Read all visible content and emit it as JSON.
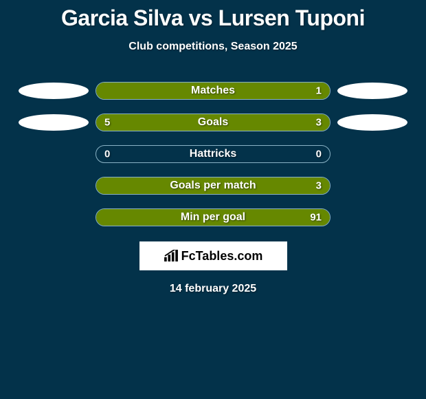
{
  "title": "Garcia Silva vs Lursen Tuponi",
  "subtitle": "Club competitions, Season 2025",
  "date": "14 february 2025",
  "logo_text": "FcTables.com",
  "colors": {
    "background": "#03324a",
    "bar_fill": "#668800",
    "bar_border": "#8ab3c6",
    "ellipse": "#ffffff",
    "logo_box": "#ffffff",
    "text": "#ffffff"
  },
  "stats": [
    {
      "label": "Matches",
      "left_value": "",
      "right_value": "1",
      "left_fill_pct": 0,
      "right_fill_pct": 100,
      "show_ellipses": true
    },
    {
      "label": "Goals",
      "left_value": "5",
      "right_value": "3",
      "left_fill_pct": 62,
      "right_fill_pct": 38,
      "show_ellipses": true
    },
    {
      "label": "Hattricks",
      "left_value": "0",
      "right_value": "0",
      "left_fill_pct": 0,
      "right_fill_pct": 0,
      "show_ellipses": false
    },
    {
      "label": "Goals per match",
      "left_value": "",
      "right_value": "3",
      "left_fill_pct": 0,
      "right_fill_pct": 100,
      "show_ellipses": false
    },
    {
      "label": "Min per goal",
      "left_value": "",
      "right_value": "91",
      "left_fill_pct": 0,
      "right_fill_pct": 100,
      "show_ellipses": false
    }
  ]
}
